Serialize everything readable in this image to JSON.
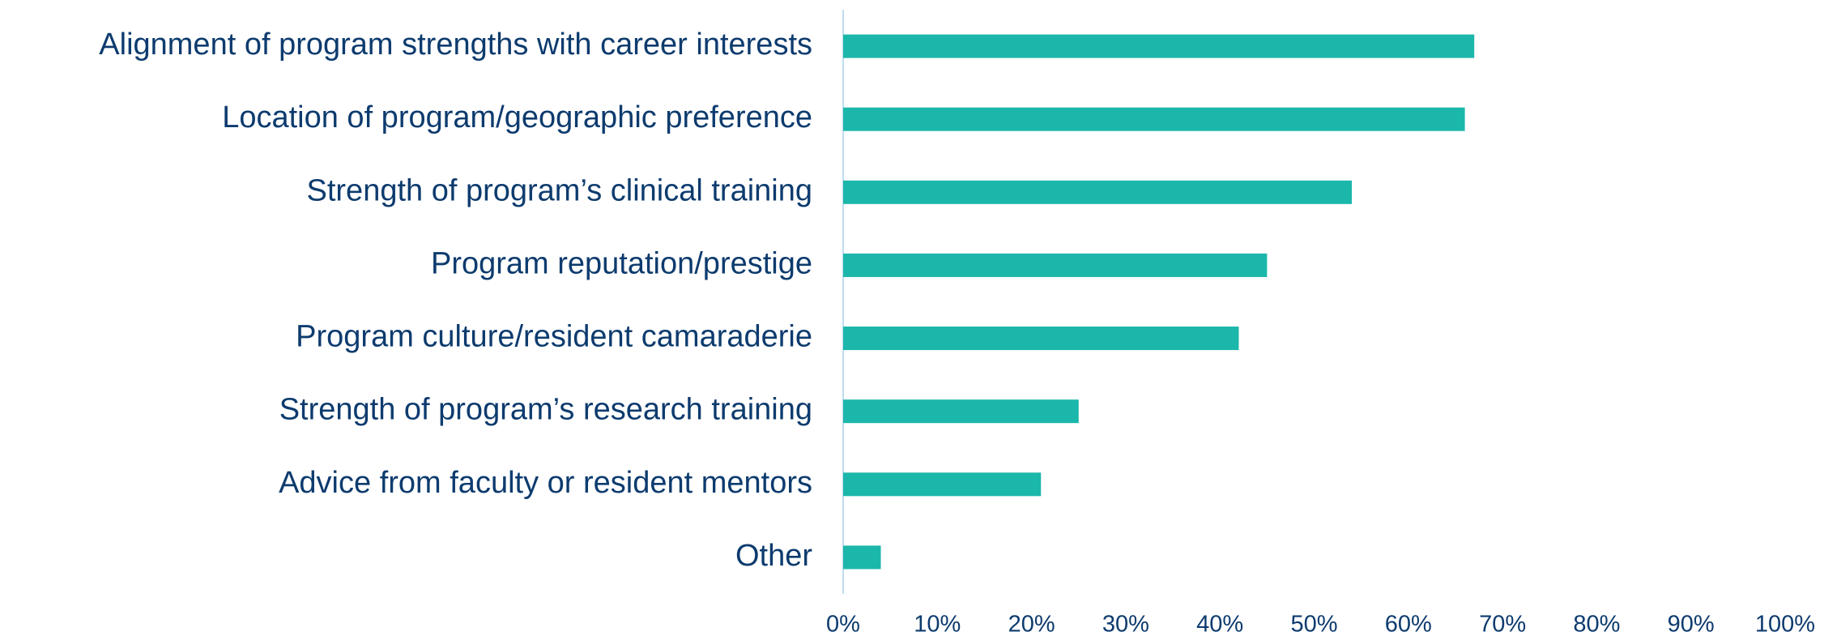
{
  "chart_data": {
    "type": "bar",
    "orientation": "horizontal",
    "categories": [
      "Alignment of program strengths with career interests",
      "Location of program/geographic preference",
      "Strength of program’s clinical training",
      "Program reputation/prestige",
      "Program culture/resident camaraderie",
      "Strength of program’s research training",
      "Advice from faculty or resident mentors",
      "Other"
    ],
    "values": [
      67,
      66,
      54,
      45,
      42,
      25,
      21,
      4
    ],
    "color": "#1bb7aa",
    "xlim": [
      0,
      100
    ],
    "xticks": [
      {
        "value": 0,
        "label": "0%"
      },
      {
        "value": 10,
        "label": "10%"
      },
      {
        "value": 20,
        "label": "20%"
      },
      {
        "value": 30,
        "label": "30%"
      },
      {
        "value": 40,
        "label": "40%"
      },
      {
        "value": 50,
        "label": "50%"
      },
      {
        "value": 60,
        "label": "60%"
      },
      {
        "value": 70,
        "label": "70%"
      },
      {
        "value": 80,
        "label": "80%"
      },
      {
        "value": 90,
        "label": "90%"
      },
      {
        "value": 100,
        "label": "100%"
      }
    ],
    "grid": false
  }
}
